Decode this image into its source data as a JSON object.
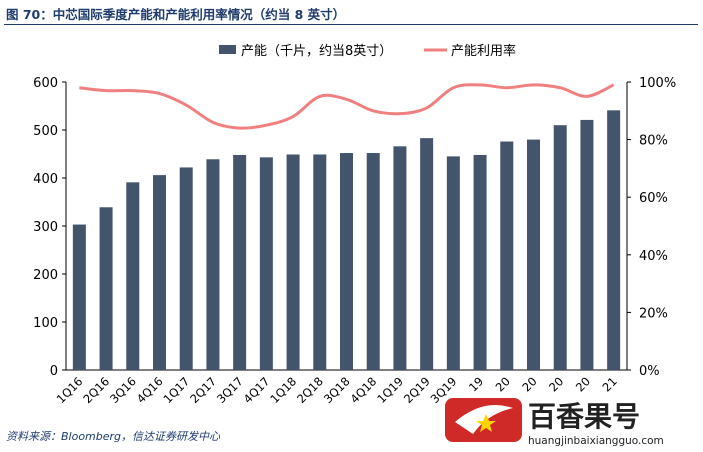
{
  "header": {
    "title": "图 70：中芯国际季度产能和产能利用率情况（约当 8 英寸）"
  },
  "footer": {
    "source": "资料来源：Bloomberg，信达证券研发中心"
  },
  "watermark": {
    "brand": "百香果号",
    "url": "huangjinbaixiangguo.com"
  },
  "colors": {
    "bar": "#44546a",
    "line": "#f08080",
    "title": "#1f3b6e"
  },
  "chart_data": {
    "type": "bar",
    "categories": [
      "1Q16",
      "2Q16",
      "3Q16",
      "4Q16",
      "1Q17",
      "2Q17",
      "3Q17",
      "4Q17",
      "1Q18",
      "2Q18",
      "3Q18",
      "4Q18",
      "1Q19",
      "2Q19",
      "3Q19",
      "4Q19",
      "1Q20",
      "2Q20",
      "3Q20",
      "4Q20",
      "1Q21"
    ],
    "category_labels": [
      "1Q16",
      "2Q16",
      "3Q16",
      "4Q16",
      "1Q17",
      "2Q17",
      "3Q17",
      "4Q17",
      "1Q18",
      "2Q18",
      "3Q18",
      "4Q18",
      "1Q19",
      "2Q19",
      "3Q19",
      "19",
      "20",
      "20",
      "20",
      "20",
      "21"
    ],
    "series": [
      {
        "name": "产能（千片，约当8英寸）",
        "type": "bar",
        "axis": "left",
        "values": [
          303,
          339,
          391,
          406,
          422,
          439,
          448,
          443,
          449,
          449,
          452,
          452,
          466,
          483,
          445,
          448,
          476,
          480,
          510,
          521,
          541
        ]
      },
      {
        "name": "产能利用率",
        "type": "line",
        "axis": "right",
        "values": [
          0.98,
          0.97,
          0.97,
          0.96,
          0.92,
          0.86,
          0.84,
          0.85,
          0.88,
          0.95,
          0.94,
          0.9,
          0.89,
          0.91,
          0.98,
          0.99,
          0.98,
          0.99,
          0.98,
          0.95,
          0.99
        ]
      }
    ],
    "y_left": {
      "min": 0,
      "max": 600,
      "ticks": [
        "0",
        "100",
        "200",
        "300",
        "400",
        "500",
        "600"
      ]
    },
    "y_right": {
      "min": 0,
      "max": 1.0,
      "ticks": [
        "0%",
        "20%",
        "40%",
        "60%",
        "80%",
        "100%"
      ]
    },
    "legend_position": "top",
    "grid": false
  }
}
